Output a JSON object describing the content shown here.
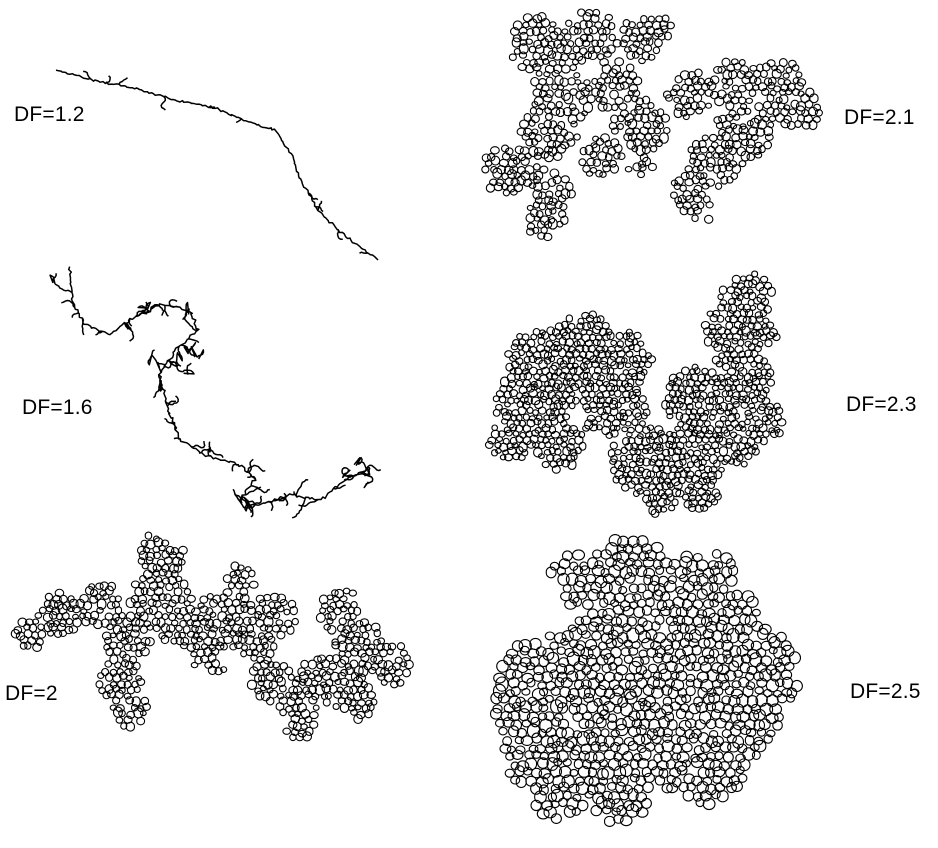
{
  "figure": {
    "panels": [
      {
        "id": "df-1-2",
        "label": "DF=1.2",
        "dimension": 1.2,
        "kind": "chain"
      },
      {
        "id": "df-2-1",
        "label": "DF=2.1",
        "dimension": 2.1,
        "kind": "aggregate"
      },
      {
        "id": "df-1-6",
        "label": "DF=1.6",
        "dimension": 1.6,
        "kind": "chain"
      },
      {
        "id": "df-2-3",
        "label": "DF=2.3",
        "dimension": 2.3,
        "kind": "aggregate"
      },
      {
        "id": "df-2",
        "label": "DF=2",
        "dimension": 2.0,
        "kind": "aggregate"
      },
      {
        "id": "df-2-5",
        "label": "DF=2.5",
        "dimension": 2.5,
        "kind": "aggregate"
      }
    ],
    "colors": {
      "stroke": "#000000",
      "fill": "#ffffff",
      "background": "#ffffff"
    }
  }
}
